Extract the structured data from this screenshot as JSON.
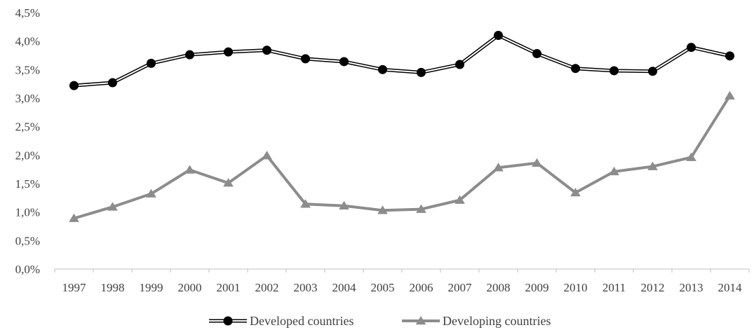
{
  "chart_data": {
    "type": "line",
    "title": "",
    "xlabel": "",
    "ylabel": "",
    "x": [
      "1997",
      "1998",
      "1999",
      "2000",
      "2001",
      "2002",
      "2003",
      "2004",
      "2005",
      "2006",
      "2007",
      "2008",
      "2009",
      "2010",
      "2011",
      "2012",
      "2013",
      "2014"
    ],
    "ylim": [
      0,
      4.5
    ],
    "yticks": [
      0,
      0.5,
      1.0,
      1.5,
      2.0,
      2.5,
      3.0,
      3.5,
      4.0,
      4.5
    ],
    "ytick_labels": [
      "0,0%",
      "0,5%",
      "1,0%",
      "1,5%",
      "2,0%",
      "2,5%",
      "3,0%",
      "3,5%",
      "4,0%",
      "4,5%"
    ],
    "grid": false,
    "legend_position": "bottom",
    "series": [
      {
        "name": "Developed countries",
        "marker": "circle",
        "color": "#000000",
        "values": [
          3.22,
          3.27,
          3.61,
          3.76,
          3.81,
          3.84,
          3.69,
          3.64,
          3.5,
          3.45,
          3.59,
          4.1,
          3.78,
          3.52,
          3.48,
          3.47,
          3.89,
          3.74
        ]
      },
      {
        "name": "Developing countries",
        "marker": "triangle",
        "color": "#8c8c8c",
        "values": [
          0.89,
          1.09,
          1.32,
          1.74,
          1.51,
          1.99,
          1.14,
          1.11,
          1.03,
          1.05,
          1.21,
          1.78,
          1.86,
          1.34,
          1.71,
          1.8,
          1.96,
          3.04
        ]
      }
    ]
  }
}
